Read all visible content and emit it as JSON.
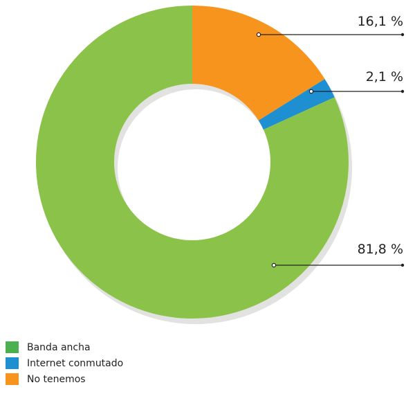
{
  "chart_data": {
    "type": "pie",
    "subtype": "donut",
    "categories": [
      "Banda ancha",
      "Internet conmutado",
      "No tenemos"
    ],
    "values": [
      81.8,
      2.1,
      16.1
    ],
    "value_labels": [
      "81,8 %",
      "2,1 %",
      "16,1 %"
    ],
    "colors": {
      "Banda ancha": "#8bc34a",
      "Internet conmutado": "#1e8fd1",
      "No tenemos": "#f7941d"
    },
    "legend_colors": {
      "Banda ancha": "#4caf50",
      "Internet conmutado": "#1e8fd1",
      "No tenemos": "#f7941d"
    },
    "legend_placement": "bottom-left"
  }
}
